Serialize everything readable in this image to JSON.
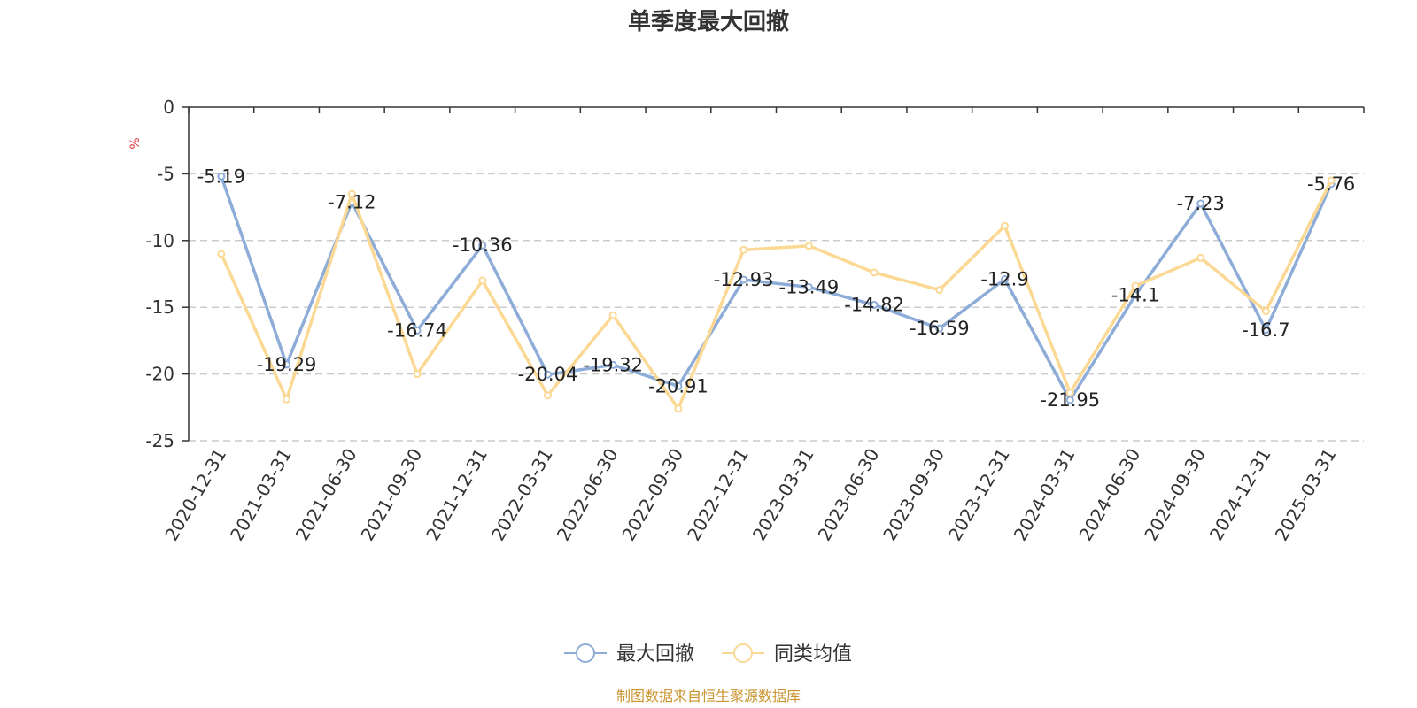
{
  "chart_data": {
    "type": "line",
    "title": "单季度最大回撤",
    "ylabel": "%",
    "ylim": [
      -25,
      0
    ],
    "yticks": [
      0,
      -5,
      -10,
      -15,
      -20,
      -25
    ],
    "grid": true,
    "legend_position": "bottom",
    "categories": [
      "2020-12-31",
      "2021-03-31",
      "2021-06-30",
      "2021-09-30",
      "2021-12-31",
      "2022-03-31",
      "2022-06-30",
      "2022-09-30",
      "2022-12-31",
      "2023-03-31",
      "2023-06-30",
      "2023-09-30",
      "2023-12-31",
      "2024-03-31",
      "2024-06-30",
      "2024-09-30",
      "2024-12-31",
      "2025-03-31"
    ],
    "series": [
      {
        "name": "最大回撤",
        "color": "#8eacd8",
        "show_labels": true,
        "values": [
          -5.19,
          -19.29,
          -7.12,
          -16.74,
          -10.36,
          -20.04,
          -19.32,
          -20.91,
          -12.93,
          -13.49,
          -14.82,
          -16.59,
          -12.9,
          -21.95,
          -14.1,
          -7.23,
          -16.7,
          -5.76
        ]
      },
      {
        "name": "同类均值",
        "color": "#fbd994",
        "show_labels": false,
        "values": [
          -11.0,
          -21.9,
          -6.5,
          -20.0,
          -13.0,
          -21.6,
          -15.6,
          -22.6,
          -10.7,
          -10.4,
          -12.4,
          -13.7,
          -8.9,
          -21.4,
          -13.4,
          -11.3,
          -15.3,
          -5.5
        ]
      }
    ]
  },
  "source": {
    "text": "制图数据来自恒生聚源数据库",
    "color": "#c8942e"
  },
  "unit_color": "#e03b3b"
}
